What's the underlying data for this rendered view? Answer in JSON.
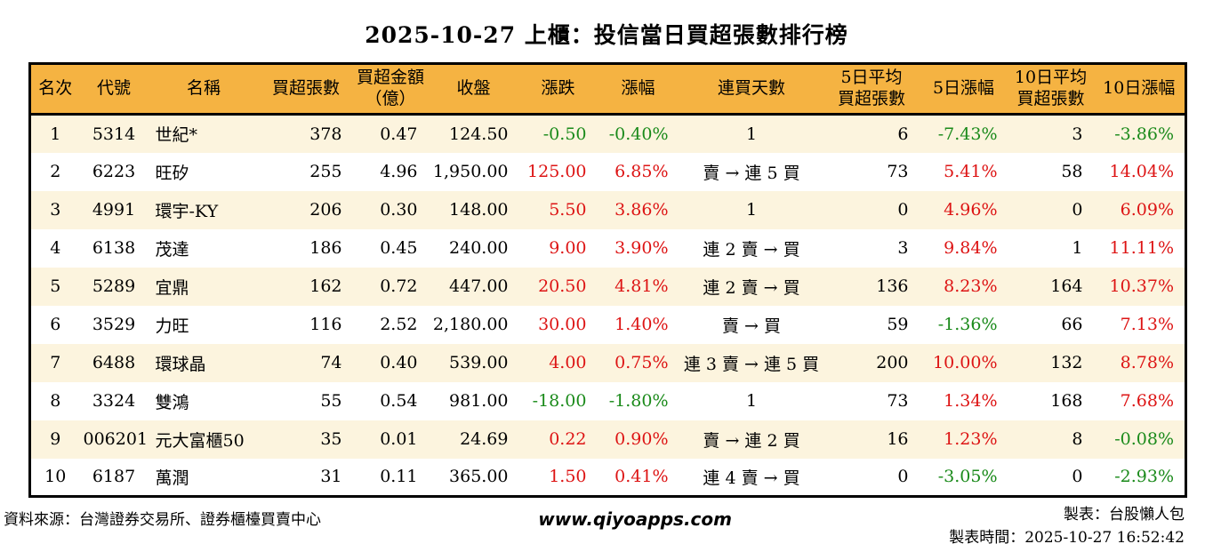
{
  "title": "2025-10-27 上櫃：投信當日買超張數排行榜",
  "table": {
    "headers": [
      "名次",
      "代號",
      "名稱",
      "買超張數",
      "買超金額\n（億）",
      "收盤",
      "漲跌",
      "漲幅",
      "連買天數",
      "5日平均\n買超張數",
      "5日漲幅",
      "10日平均\n買超張數",
      "10日漲幅"
    ],
    "rows": [
      [
        "1",
        "5314",
        "世紀*",
        "378",
        "0.47",
        "124.50",
        "-0.50",
        "-0.40%",
        "1",
        "6",
        "-7.43%",
        "3",
        "-3.86%"
      ],
      [
        "2",
        "6223",
        "旺矽",
        "255",
        "4.96",
        "1,950.00",
        "125.00",
        "6.85%",
        "賣 → 連 5 買",
        "73",
        "5.41%",
        "58",
        "14.04%"
      ],
      [
        "3",
        "4991",
        "環宇-KY",
        "206",
        "0.30",
        "148.00",
        "5.50",
        "3.86%",
        "1",
        "0",
        "4.96%",
        "0",
        "6.09%"
      ],
      [
        "4",
        "6138",
        "茂達",
        "186",
        "0.45",
        "240.00",
        "9.00",
        "3.90%",
        "連 2 賣 → 買",
        "3",
        "9.84%",
        "1",
        "11.11%"
      ],
      [
        "5",
        "5289",
        "宜鼎",
        "162",
        "0.72",
        "447.00",
        "20.50",
        "4.81%",
        "連 2 賣 → 買",
        "136",
        "8.23%",
        "164",
        "10.37%"
      ],
      [
        "6",
        "3529",
        "力旺",
        "116",
        "2.52",
        "2,180.00",
        "30.00",
        "1.40%",
        "賣 → 買",
        "59",
        "-1.36%",
        "66",
        "7.13%"
      ],
      [
        "7",
        "6488",
        "環球晶",
        "74",
        "0.40",
        "539.00",
        "4.00",
        "0.75%",
        "連 3 賣 → 連 5 買",
        "200",
        "10.00%",
        "132",
        "8.78%"
      ],
      [
        "8",
        "3324",
        "雙鴻",
        "55",
        "0.54",
        "981.00",
        "-18.00",
        "-1.80%",
        "1",
        "73",
        "1.34%",
        "168",
        "7.68%"
      ],
      [
        "9",
        "006201",
        "元大富櫃50",
        "35",
        "0.01",
        "24.69",
        "0.22",
        "0.90%",
        "賣 → 連 2 買",
        "16",
        "1.23%",
        "8",
        "-0.08%"
      ],
      [
        "10",
        "6187",
        "萬潤",
        "31",
        "0.11",
        "365.00",
        "1.50",
        "0.41%",
        "連 4 賣 → 買",
        "0",
        "-3.05%",
        "0",
        "-2.93%"
      ]
    ]
  },
  "footer": {
    "source": "資料來源：台灣證券交易所、證券櫃檯買賣中心",
    "website": "www.qiyoapps.com",
    "maker": "製表：台股懶人包",
    "time": "製表時間：2025-10-27 16:52:42"
  },
  "colors": {
    "up": "#dd1414",
    "down": "#1a8a1a",
    "header_bg": "#f5b342",
    "row_alt_bg": "#fcf4de",
    "border": "#000000"
  }
}
